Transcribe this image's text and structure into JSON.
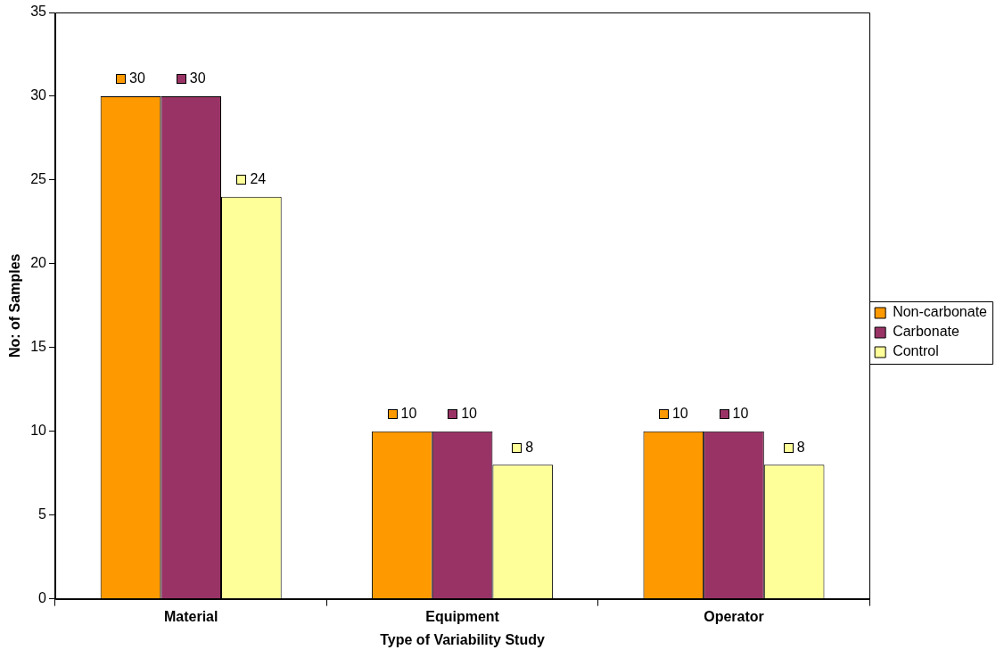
{
  "chart_data": {
    "type": "bar",
    "xlabel": "Type of Variability Study",
    "ylabel": "No: of Samples",
    "categories": [
      "Material",
      "Equipment",
      "Operator"
    ],
    "series": [
      {
        "name": "Non-carbonate",
        "color": "#ff9900",
        "values": [
          30,
          10,
          10
        ]
      },
      {
        "name": "Carbonate",
        "color": "#993366",
        "values": [
          30,
          10,
          10
        ]
      },
      {
        "name": "Control",
        "color": "#ffff99",
        "values": [
          24,
          8,
          8
        ]
      }
    ],
    "ylim": [
      0,
      35
    ],
    "yticks": [
      0,
      5,
      10,
      15,
      20,
      25,
      30,
      35
    ],
    "grid": false,
    "legend": "right",
    "data_labels": true
  }
}
